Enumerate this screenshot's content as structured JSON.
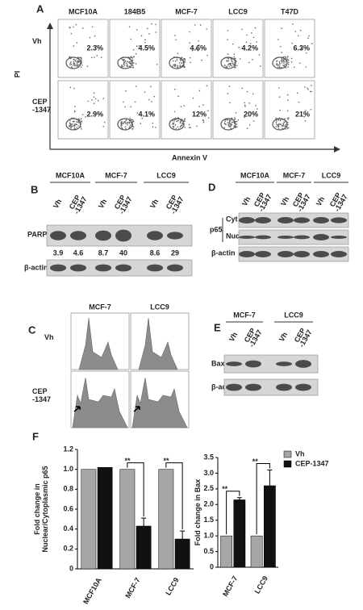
{
  "panel_a": {
    "label": "A",
    "columns": [
      "MCF10A",
      "184B5",
      "MCF-7",
      "LCC9",
      "T47D"
    ],
    "rows": [
      {
        "label": [
          "Vh"
        ],
        "percents": [
          "2.3%",
          "4.5%",
          "4.6%",
          "4.2%",
          "6.3%"
        ]
      },
      {
        "label": [
          "CEP",
          "-1347"
        ],
        "percents": [
          "2.9%",
          "4.1%",
          "12%",
          "20%",
          "21%"
        ]
      }
    ],
    "y_label": "PI",
    "x_label": "Annexin V"
  },
  "panel_b": {
    "label": "B",
    "groups": [
      "MCF10A",
      "MCF-7",
      "LCC9"
    ],
    "lanes": [
      [
        "Vh"
      ],
      [
        "CEP",
        "-1347"
      ],
      [
        "Vh"
      ],
      [
        "CEP",
        "-1347"
      ],
      [
        "Vh"
      ],
      [
        "CEP",
        "-1347"
      ]
    ],
    "rows": [
      "PARP",
      "β-actin"
    ],
    "quantification": [
      3.9,
      4.6,
      8.7,
      40,
      8.6,
      29
    ]
  },
  "panel_d": {
    "label": "D",
    "groups": [
      "MCF10A",
      "MCF-7",
      "LCC9"
    ],
    "lanes": [
      [
        "Vh"
      ],
      [
        "CEP",
        "-1347"
      ],
      [
        "Vh"
      ],
      [
        "CEP",
        "-1347"
      ],
      [
        "Vh"
      ],
      [
        "CEP",
        "-1347"
      ]
    ],
    "protein": "p65",
    "rows": [
      "Cyt",
      "Nuc",
      "β-actin"
    ]
  },
  "panel_c": {
    "label": "C",
    "columns": [
      "MCF-7",
      "LCC9"
    ],
    "rows": [
      [
        "Vh"
      ],
      [
        "CEP",
        "-1347"
      ]
    ]
  },
  "panel_e": {
    "label": "E",
    "groups": [
      "MCF-7",
      "LCC9"
    ],
    "lanes": [
      [
        "Vh"
      ],
      [
        "CEP",
        "-1347"
      ],
      [
        "Vh"
      ],
      [
        "CEP",
        "-1347"
      ]
    ],
    "rows": [
      "Bax",
      "β-actin"
    ]
  },
  "panel_f": {
    "label": "F"
  },
  "chart_data": [
    {
      "type": "bar",
      "y_label": [
        "Fold change in",
        "Nuclear/Cytoplasmic p65"
      ],
      "categories": [
        "MCF10A",
        "MCF-7",
        "LCC9"
      ],
      "series": [
        {
          "color": "#a6a6a6",
          "values": [
            1.0,
            1.0,
            1.0
          ]
        },
        {
          "color": "#111111",
          "values": [
            1.02,
            0.43,
            0.3
          ],
          "errors": [
            null,
            0.08,
            0.08
          ]
        }
      ],
      "annotations": [
        null,
        "**",
        "**"
      ],
      "ylim": [
        0,
        1.2
      ],
      "yticks": [
        0,
        0.2,
        0.4,
        0.6,
        0.8,
        {
          "value": 1,
          "label": "1.0"
        },
        1.2
      ]
    },
    {
      "type": "bar",
      "y_label": [
        "Fold change in Bax"
      ],
      "categories": [
        "MCF-7",
        "LCC9"
      ],
      "series": [
        {
          "name": "Vh",
          "color": "#a6a6a6",
          "values": [
            1.0,
            1.0
          ]
        },
        {
          "name": "CEP-1347",
          "color": "#111111",
          "values": [
            2.15,
            2.6
          ],
          "errors": [
            0.07,
            0.5
          ]
        }
      ],
      "annotations": [
        "**",
        "**"
      ],
      "ylim": [
        0,
        3.5
      ],
      "yticks": [
        0,
        0.5,
        {
          "value": 1,
          "label": "1.0"
        },
        1.5,
        {
          "value": 2,
          "label": "2.0"
        },
        2.5,
        {
          "value": 3,
          "label": "3.0"
        },
        3.5
      ],
      "legend": "top-right"
    }
  ]
}
